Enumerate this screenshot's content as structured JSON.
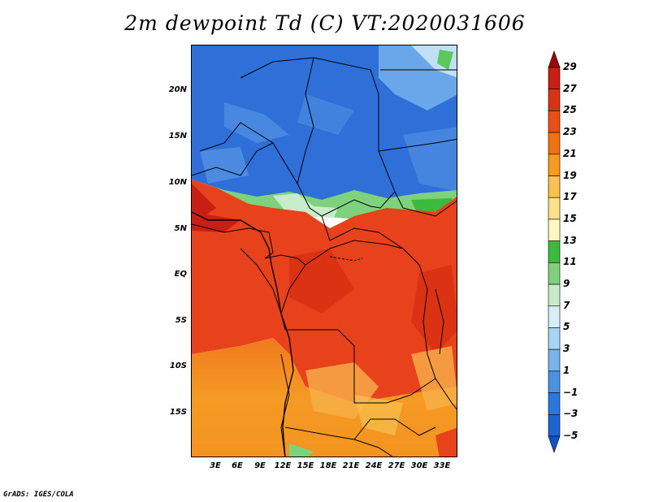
{
  "title": "2m dewpoint Td (C) VT:2020031606",
  "lat_labels": [
    "20N",
    "15N",
    "10N",
    "5N",
    "EQ",
    "5S",
    "10S",
    "15S"
  ],
  "lon_labels": [
    "3E",
    "6E",
    "9E",
    "12E",
    "15E",
    "18E",
    "21E",
    "24E",
    "27E",
    "30E",
    "33E"
  ],
  "colorbar": {
    "labels": [
      "29",
      "27",
      "25",
      "23",
      "21",
      "19",
      "17",
      "15",
      "13",
      "11",
      "9",
      "7",
      "5",
      "3",
      "1",
      "−1",
      "−3",
      "−5"
    ],
    "colors": [
      "#a0000a",
      "#c81e14",
      "#dc3214",
      "#e85014",
      "#f07014",
      "#f89a1e",
      "#fac050",
      "#fce08a",
      "#fef8c0",
      "#3cba3c",
      "#7ed27e",
      "#c8ecc8",
      "#d6eef8",
      "#a8d4f4",
      "#78b4ec",
      "#4a92e4",
      "#2a78dc",
      "#1e64d2",
      "#1450c8"
    ]
  },
  "credit": "GrADS: IGES/COLA",
  "colors": {
    "cold_blue": "#2f6fd8",
    "moist_red": "#e8421c",
    "dry_orange": "#f59a24",
    "green_band": "#5cc85c"
  }
}
